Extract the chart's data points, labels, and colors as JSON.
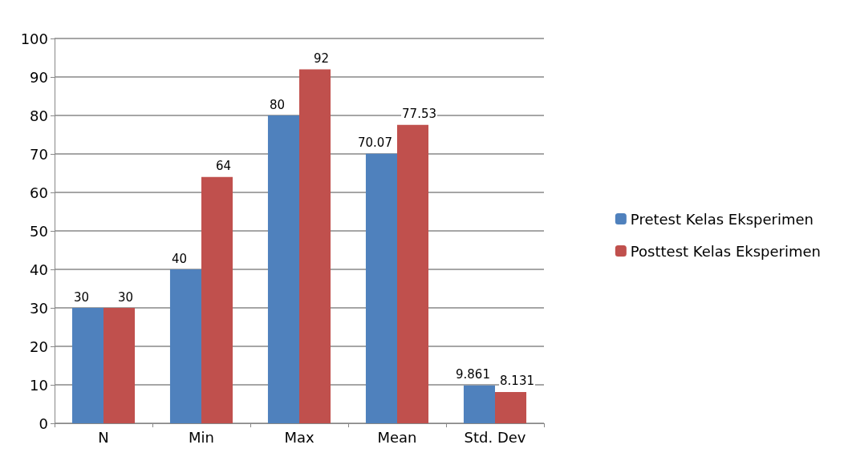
{
  "chart_data": {
    "type": "bar",
    "categories": [
      "N",
      "Min",
      "Max",
      "Mean",
      "Std. Dev"
    ],
    "series": [
      {
        "name": "Pretest Kelas Eksperimen",
        "color": "#4f81bd",
        "values": [
          30,
          40,
          80,
          70.07,
          9.861
        ]
      },
      {
        "name": "Posttest Kelas Eksperimen",
        "color": "#c0504d",
        "values": [
          30,
          64,
          92,
          77.53,
          8.131
        ]
      }
    ],
    "ylim": [
      0,
      100
    ],
    "yticks": [
      0,
      10,
      20,
      30,
      40,
      50,
      60,
      70,
      80,
      90,
      100
    ],
    "grid": "y",
    "legend": "right",
    "data_labels": true
  }
}
